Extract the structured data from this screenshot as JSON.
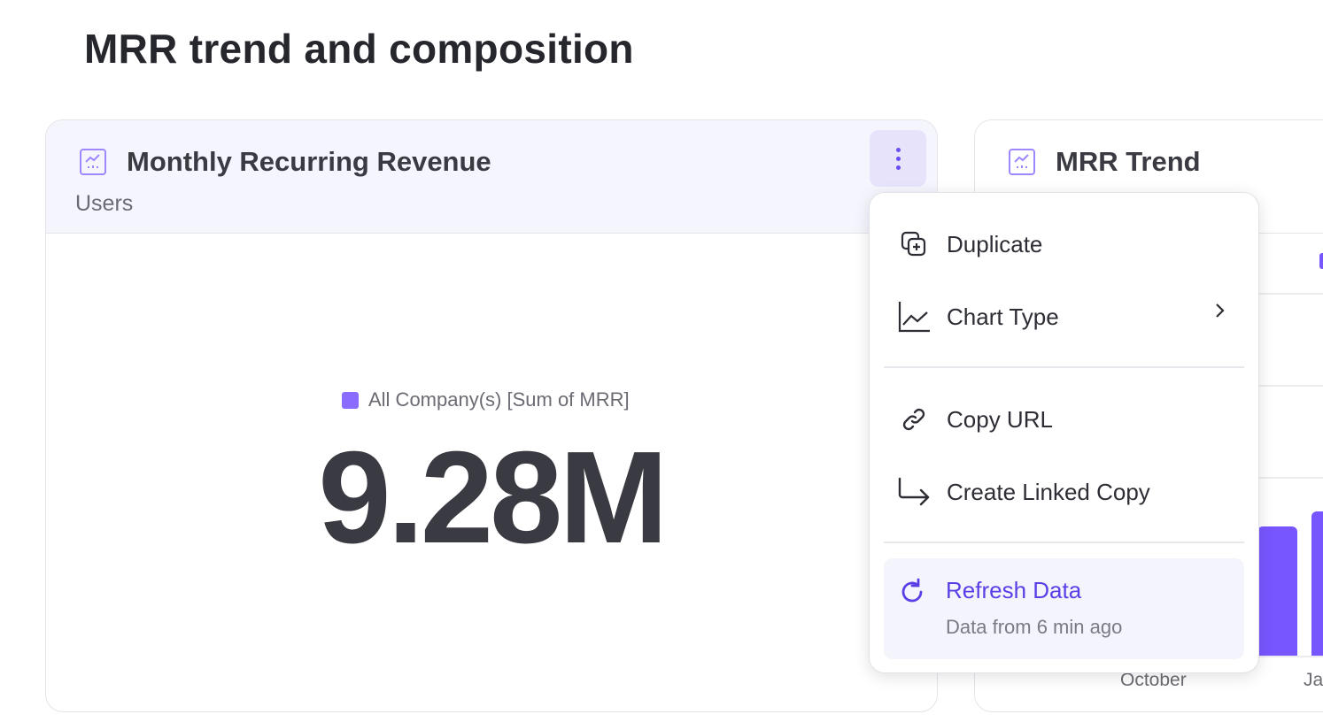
{
  "page": {
    "title": "MRR trend and composition"
  },
  "card1": {
    "title": "Monthly Recurring Revenue",
    "subtitle": "Users",
    "legend": "All Company(s) [Sum of MRR]",
    "value": "9.28M",
    "more_icon": "vertical-dots-icon",
    "series_color": "#7856ff"
  },
  "card2": {
    "title": "MRR Trend",
    "x_labels": [
      "October",
      "Ja"
    ]
  },
  "menu": {
    "items": [
      {
        "label": "Duplicate",
        "icon": "duplicate-icon"
      },
      {
        "label": "Chart Type",
        "icon": "line-chart-icon",
        "submenu": true
      },
      {
        "label": "Copy URL",
        "icon": "link-icon"
      },
      {
        "label": "Create Linked Copy",
        "icon": "linked-arrow-icon"
      }
    ],
    "refresh": {
      "label": "Refresh Data",
      "sub": "Data from 6 min ago",
      "icon": "refresh-icon",
      "color": "#5b3fe6"
    }
  }
}
